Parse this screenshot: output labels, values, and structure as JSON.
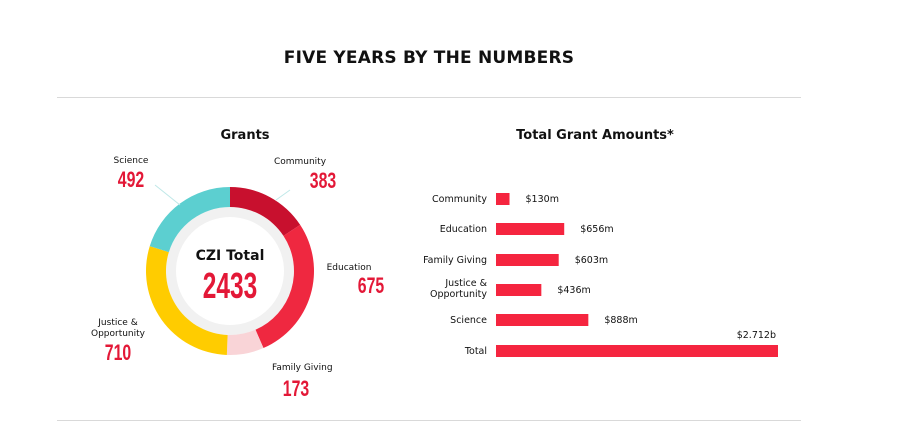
{
  "header": {
    "title": "FIVE YEARS BY THE NUMBERS"
  },
  "chart_data": [
    {
      "type": "pie",
      "title": "Grants",
      "center_label": "CZI Total",
      "center_value": "2433",
      "slices": [
        {
          "label": "Community",
          "value": 383,
          "display": "383",
          "color": "#c8102e"
        },
        {
          "label": "Education",
          "value": 675,
          "display": "675",
          "color": "#ef2840"
        },
        {
          "label": "Family Giving",
          "value": 173,
          "display": "173",
          "color": "#f9d4d7"
        },
        {
          "label": "Justice & Opportunity",
          "value": 710,
          "display": "710",
          "color": "#ffcc00"
        },
        {
          "label": "Science",
          "value": 492,
          "display": "492",
          "color": "#5ccfd0"
        }
      ]
    },
    {
      "type": "bar",
      "orientation": "horizontal",
      "title": "Total Grant Amounts*",
      "categories": [
        "Community",
        "Education",
        "Family Giving",
        "Justice & Opportunity",
        "Science",
        "Total"
      ],
      "values": [
        130,
        656,
        603,
        436,
        888,
        2712
      ],
      "value_labels": [
        "$130m",
        "$656m",
        "$603m",
        "$436m",
        "$888m",
        "$2.712b"
      ],
      "units": "millions USD",
      "bar_color": "#f5253f"
    }
  ]
}
